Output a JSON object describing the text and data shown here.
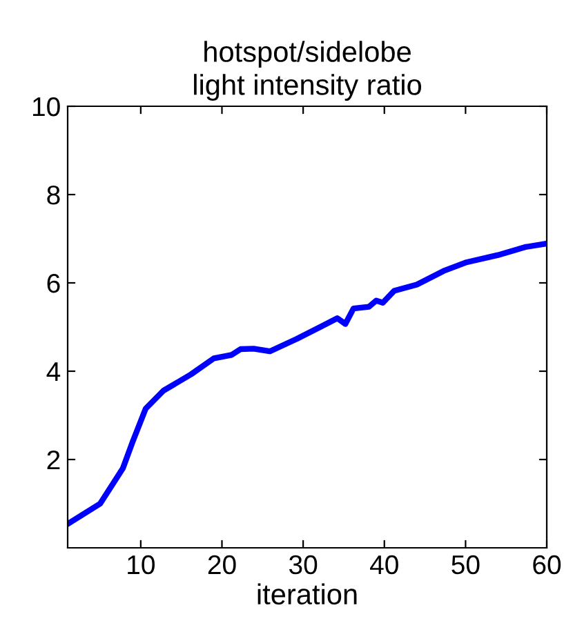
{
  "chart_data": {
    "type": "line",
    "title": "hotspot/sidelobe\nlight intensity ratio",
    "xlabel": "iteration",
    "x": [
      1,
      5,
      7.8,
      9,
      10.6,
      12.8,
      16.2,
      19,
      21.2,
      22.3,
      23.9,
      25.9,
      29.2,
      32.3,
      34.2,
      35.2,
      36.2,
      38.1,
      39,
      39.8,
      41.2,
      44,
      47.3,
      50,
      54,
      57.3,
      60
    ],
    "series": [
      {
        "color": "#0000ff",
        "values": [
          0.54,
          1.0,
          1.8,
          2.4,
          3.15,
          3.56,
          3.93,
          4.29,
          4.37,
          4.5,
          4.51,
          4.45,
          4.73,
          5.02,
          5.2,
          5.07,
          5.42,
          5.46,
          5.6,
          5.55,
          5.82,
          5.96,
          6.27,
          6.46,
          6.63,
          6.81,
          6.89
        ]
      }
    ],
    "xlim": [
      1,
      60
    ],
    "xticks": [
      10,
      20,
      30,
      40,
      50,
      60
    ],
    "ylim": [
      0,
      10
    ],
    "yticks": [
      2,
      4,
      6,
      8,
      10
    ],
    "grid": false,
    "legend": false,
    "marker": "none",
    "line_style": "solid"
  }
}
